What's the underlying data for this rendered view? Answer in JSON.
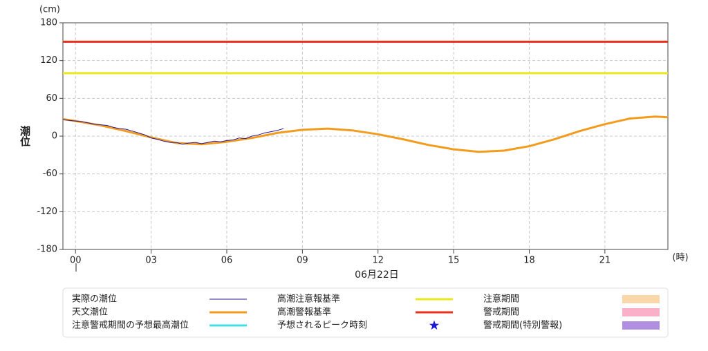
{
  "chart_data": {
    "type": "line",
    "unit_label": "(cm)",
    "y_label": "潮位",
    "x_unit_label": "(時)",
    "date_label": "06月22日",
    "xlim": [
      -0.5,
      23.5
    ],
    "ylim": [
      -180,
      180
    ],
    "xticks": [
      {
        "value": 0,
        "label": "00"
      },
      {
        "value": 3,
        "label": "03"
      },
      {
        "value": 6,
        "label": "06"
      },
      {
        "value": 9,
        "label": "09"
      },
      12,
      15,
      18,
      21
    ],
    "yticks": [
      180,
      120,
      60,
      0,
      -60,
      -120,
      -180
    ],
    "grid": true,
    "series": [
      {
        "name": "実際の潮位",
        "color": "#2a1a9a",
        "width": 1,
        "x": [
          -0.5,
          -0.25,
          0,
          0.25,
          0.5,
          0.75,
          1,
          1.25,
          1.5,
          1.75,
          2,
          2.25,
          2.5,
          2.75,
          3,
          3.25,
          3.5,
          3.75,
          4,
          4.25,
          4.5,
          4.75,
          5,
          5.25,
          5.5,
          5.75,
          6,
          6.25,
          6.5,
          6.75,
          7,
          7.25,
          7.5,
          7.75,
          8,
          8.25
        ],
        "values": [
          26,
          25,
          24,
          23,
          21,
          19,
          18,
          17,
          14,
          12,
          11,
          8,
          5,
          2,
          -3,
          -5,
          -8,
          -10,
          -10,
          -13,
          -11,
          -10,
          -12,
          -10,
          -8,
          -9,
          -7,
          -6,
          -3,
          -4,
          0,
          2,
          5,
          7,
          9,
          12
        ]
      },
      {
        "name": "天文潮位",
        "color": "#f29b1d",
        "width": 3,
        "x": [
          -0.5,
          0,
          1,
          2,
          3,
          4,
          5,
          6,
          7,
          8,
          9,
          10,
          11,
          12,
          13,
          14,
          15,
          16,
          17,
          18,
          19,
          20,
          21,
          22,
          23,
          23.5
        ],
        "values": [
          27,
          24,
          17,
          8,
          -2,
          -11,
          -13,
          -9,
          -3,
          5,
          10,
          12,
          9,
          3,
          -5,
          -14,
          -21,
          -25,
          -23,
          -16,
          -5,
          8,
          19,
          28,
          31,
          30
        ]
      },
      {
        "name": "注意警戒期間の予想最高潮位",
        "color": "#3ee0e8",
        "width": 3,
        "x": [],
        "values": []
      }
    ],
    "reference_lines": [
      {
        "name": "高潮注意報基準",
        "color": "#e8e81c",
        "value": 100
      },
      {
        "name": "高潮警報基準",
        "color": "#e8301c",
        "value": 150
      }
    ],
    "legend_extra": [
      {
        "name": "予想されるピーク時刻",
        "color": "#1a1ad8",
        "shape": "star"
      },
      {
        "name": "注意期間",
        "color": "#fad7a8",
        "shape": "rect"
      },
      {
        "name": "警戒期間",
        "color": "#f9b0c8",
        "shape": "rect"
      },
      {
        "name": "警戒期間(特別警報)",
        "color": "#b08ee0",
        "shape": "rect"
      }
    ]
  }
}
